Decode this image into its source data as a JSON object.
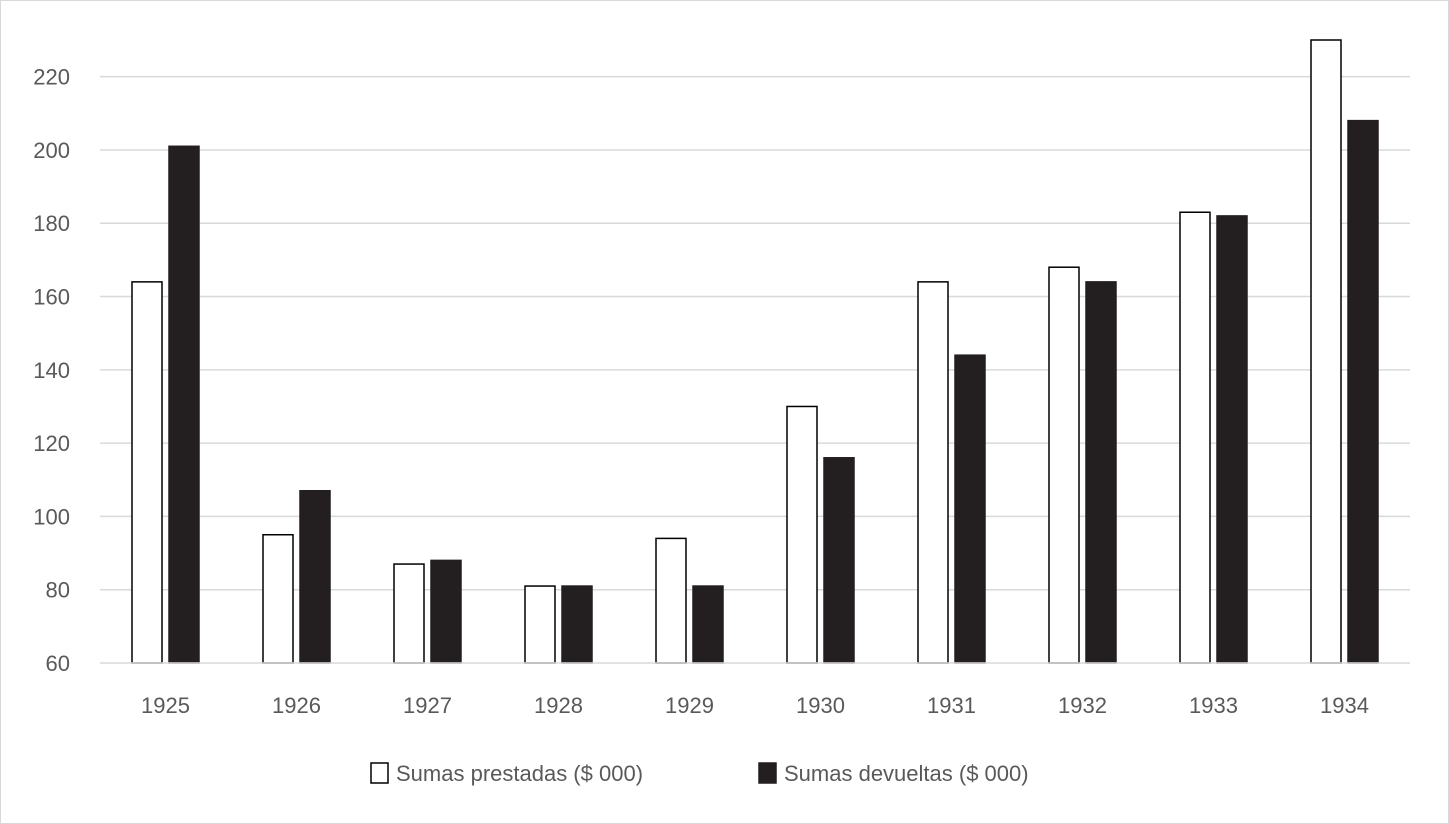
{
  "chart_data": {
    "type": "bar",
    "title": "",
    "xlabel": "",
    "ylabel": "",
    "categories": [
      "1925",
      "1926",
      "1927",
      "1928",
      "1929",
      "1930",
      "1931",
      "1932",
      "1933",
      "1934"
    ],
    "series": [
      {
        "name": "Sumas prestadas ($ 000)",
        "values": [
          164,
          95,
          87,
          81,
          94,
          130,
          164,
          168,
          183,
          230
        ],
        "color": "#ffffff",
        "stroke": "#000000"
      },
      {
        "name": "Sumas devueltas ($ 000)",
        "values": [
          201,
          107,
          88,
          81,
          81,
          116,
          144,
          164,
          182,
          208
        ],
        "color": "#231f20",
        "stroke": "#231f20"
      }
    ],
    "ylim": [
      60,
      230
    ],
    "yticks": [
      60,
      80,
      100,
      120,
      140,
      160,
      180,
      200,
      220
    ],
    "grid": true,
    "legend_position": "bottom"
  }
}
